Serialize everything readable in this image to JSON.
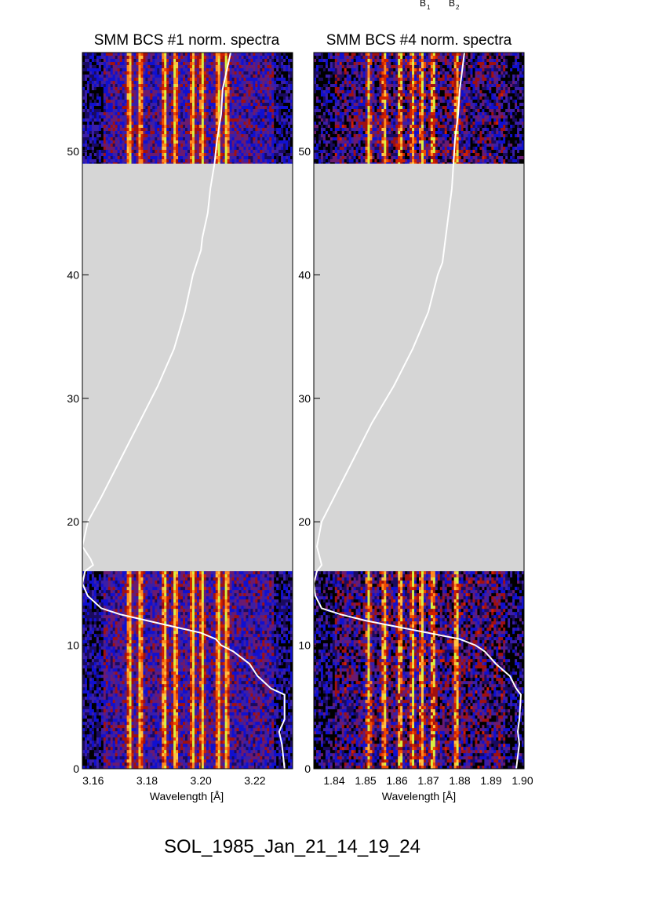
{
  "header": {
    "line_labels": [
      {
        "letter": "B",
        "sub": "1"
      },
      {
        "letter": "B",
        "sub": "2"
      }
    ]
  },
  "event_title": "SOL_1985_Jan_21_14_19_24",
  "colors": {
    "no_data_gray": "#d6d6d6",
    "overlay_curve": "#ffffff",
    "colormap": [
      "#000000",
      "#1a0a60",
      "#1010d0",
      "#3a1ea8",
      "#6a1a70",
      "#a01010",
      "#d02000",
      "#f04a00",
      "#ff8a20",
      "#ffc040",
      "#d8f040"
    ]
  },
  "chart_data": [
    {
      "type": "heatmap",
      "title": "SMM BCS #1 norm. spectra",
      "xlabel": "Wavelength [Å]",
      "ylabel": "",
      "xlim": [
        3.156,
        3.234
      ],
      "ylim": [
        0,
        58
      ],
      "x_ticks": [
        "3.16",
        "3.18",
        "3.20",
        "3.22"
      ],
      "y_ticks": [
        "0",
        "10",
        "20",
        "30",
        "40",
        "50"
      ],
      "data_gaps": [
        [
          16,
          49
        ]
      ],
      "emission_lines_x": [
        3.1735,
        3.1775,
        3.1865,
        3.1905,
        3.197,
        3.2005,
        3.2065,
        3.2095
      ],
      "overlay_curve": {
        "x": [
          3.231,
          3.23,
          3.229,
          3.231,
          3.231,
          3.226,
          3.221,
          3.218,
          3.212,
          3.2075,
          3.2055,
          3.2,
          3.19,
          3.18,
          3.17,
          3.163,
          3.158,
          3.156,
          3.157,
          3.16,
          3.159,
          3.156,
          3.158,
          3.163,
          3.17,
          3.177,
          3.184,
          3.19,
          3.194,
          3.197,
          3.1985,
          3.2,
          3.2005,
          3.2025,
          3.2035,
          3.205,
          3.206,
          3.2075,
          3.208,
          3.209,
          3.211
        ],
        "y": [
          0,
          2,
          3,
          4,
          6,
          6.5,
          7.5,
          8.5,
          9.5,
          10,
          10.5,
          11,
          11.5,
          12,
          12.5,
          13,
          14,
          15,
          16,
          16.5,
          17,
          18,
          20,
          22,
          25,
          28,
          31,
          34,
          37,
          40,
          41,
          42,
          43,
          45,
          47,
          49,
          51,
          53,
          55,
          56,
          58
        ]
      }
    },
    {
      "type": "heatmap",
      "title": "SMM BCS #4 norm. spectra",
      "xlabel": "Wavelength [Å]",
      "ylabel": "",
      "xlim": [
        1.8335,
        1.9005
      ],
      "ylim": [
        0,
        58
      ],
      "x_ticks": [
        "1.84",
        "1.85",
        "1.86",
        "1.87",
        "1.88",
        "1.89",
        "1.90"
      ],
      "y_ticks": [
        "0",
        "10",
        "20",
        "30",
        "40",
        "50"
      ],
      "data_gaps": [
        [
          16,
          49
        ]
      ],
      "emission_lines_x": [
        1.851,
        1.856,
        1.861,
        1.865,
        1.868,
        1.8715,
        1.879
      ],
      "overlay_curve": {
        "x": [
          1.898,
          1.899,
          1.8985,
          1.899,
          1.8995,
          1.898,
          1.896,
          1.8915,
          1.888,
          1.885,
          1.88,
          1.87,
          1.86,
          1.85,
          1.842,
          1.836,
          1.834,
          1.8335,
          1.8345,
          1.836,
          1.8355,
          1.8345,
          1.836,
          1.84,
          1.846,
          1.852,
          1.859,
          1.865,
          1.87,
          1.873,
          1.8745,
          1.875,
          1.8755,
          1.8765,
          1.8775,
          1.878,
          1.8785,
          1.8795,
          1.88,
          1.8805,
          1.8815
        ],
        "y": [
          0,
          2,
          3,
          4,
          6,
          6.5,
          7.5,
          8.5,
          9.5,
          10,
          10.5,
          11,
          11.5,
          12,
          12.5,
          13,
          14,
          15,
          16,
          16.5,
          17,
          18,
          20,
          22,
          25,
          28,
          31,
          34,
          37,
          40,
          41,
          42,
          43,
          45,
          47,
          49,
          51,
          53,
          55,
          56,
          58
        ]
      }
    }
  ]
}
